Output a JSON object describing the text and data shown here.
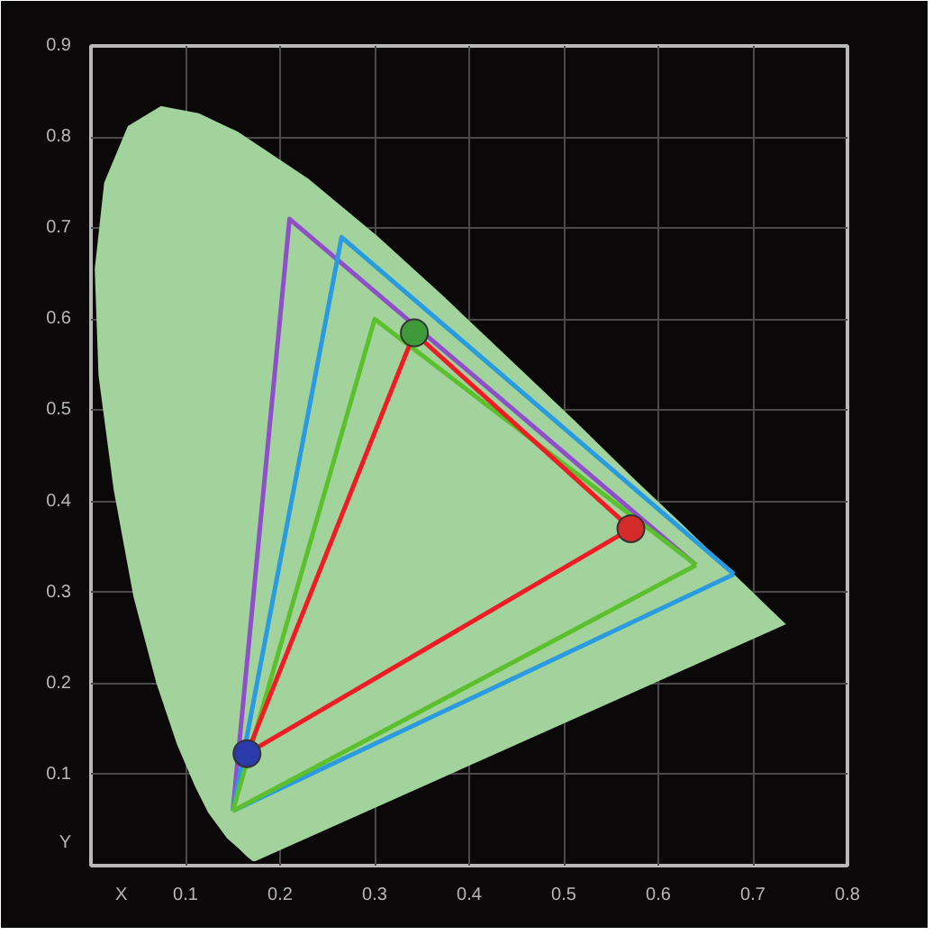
{
  "chart_data": {
    "type": "line",
    "xlabel": "X",
    "ylabel": "Y",
    "xlim": [
      0,
      0.8
    ],
    "ylim": [
      0,
      0.9
    ],
    "xticks": [
      0.1,
      0.2,
      0.3,
      0.4,
      0.5,
      0.6,
      0.7,
      0.8
    ],
    "yticks": [
      0.1,
      0.2,
      0.3,
      0.4,
      0.5,
      0.6,
      0.7,
      0.8,
      0.9
    ],
    "grid": true,
    "series": [
      {
        "type": "area",
        "color": "#a3d39c",
        "x": [
          0.174,
          0.171,
          0.164,
          0.157,
          0.144,
          0.124,
          0.11,
          0.091,
          0.069,
          0.045,
          0.024,
          0.008,
          0.004,
          0.014,
          0.039,
          0.074,
          0.114,
          0.155,
          0.23,
          0.302,
          0.373,
          0.444,
          0.513,
          0.575,
          0.627,
          0.692,
          0.719,
          0.735,
          0.174
        ],
        "values": [
          0.005,
          0.005,
          0.011,
          0.018,
          0.03,
          0.058,
          0.087,
          0.133,
          0.201,
          0.295,
          0.413,
          0.538,
          0.655,
          0.75,
          0.812,
          0.834,
          0.826,
          0.806,
          0.754,
          0.692,
          0.625,
          0.555,
          0.487,
          0.424,
          0.373,
          0.308,
          0.281,
          0.265,
          0.005
        ]
      },
      {
        "color": "#8e4fc8",
        "x": [
          0.15,
          0.21,
          0.64
        ],
        "values": [
          0.06,
          0.71,
          0.33
        ]
      },
      {
        "color": "#2b9be0",
        "x": [
          0.15,
          0.265,
          0.68
        ],
        "values": [
          0.06,
          0.69,
          0.32
        ]
      },
      {
        "color": "#2b9be0",
        "x": [
          0.15,
          0.68
        ],
        "values": [
          0.06,
          0.32
        ]
      },
      {
        "color": "#5cc02e",
        "x": [
          0.15,
          0.3,
          0.64
        ],
        "values": [
          0.06,
          0.6,
          0.33
        ]
      },
      {
        "color": "#5cc02e",
        "x": [
          0.15,
          0.64
        ],
        "values": [
          0.06,
          0.33
        ]
      },
      {
        "color": "#ee1c24",
        "x": [
          0.165,
          0.342,
          0.571
        ],
        "values": [
          0.123,
          0.585,
          0.37
        ]
      },
      {
        "color": "#ee1c24",
        "x": [
          0.165,
          0.571
        ],
        "values": [
          0.123,
          0.37
        ]
      },
      {
        "type": "scatter",
        "x": [
          0.571,
          0.342,
          0.165
        ],
        "values": [
          0.37,
          0.585,
          0.123
        ],
        "colors": [
          "#d42a2a",
          "#3f9a3a",
          "#2a3aa8"
        ]
      }
    ]
  }
}
